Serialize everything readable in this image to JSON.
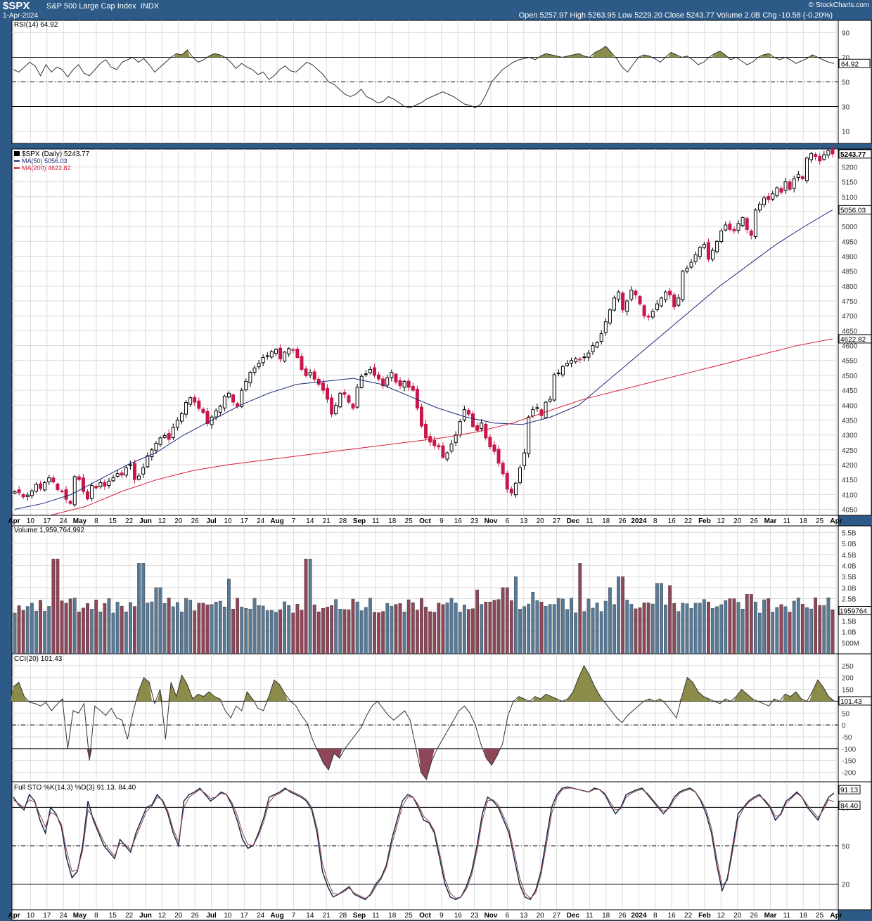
{
  "header": {
    "symbol": "$SPX",
    "name": "S&P 500 Large Cap Index",
    "exchange": "INDX",
    "date": "1-Apr-2024",
    "credit": "© StockCharts.com",
    "ohlc": "Open 5257.97   High 5263.95   Low 5229.20   Close 5243.77   Volume 2.0B   Chg -10.58 (-0.20%)"
  },
  "colors": {
    "up": "#ffffff",
    "down": "#c8174a",
    "ma50": "#1b2a7a",
    "ma200": "#d61f3c",
    "vol_up": "#587a96",
    "vol_down": "#8e4658",
    "olive": "#8b8b4a",
    "maroon": "#8e4658",
    "stok": "#1e2a48",
    "stod": "#8e4658"
  },
  "x_axis": {
    "labels": [
      "Apr",
      "10",
      "17",
      "24",
      "May",
      "8",
      "15",
      "22",
      "Jun",
      "12",
      "20",
      "26",
      "Jul",
      "10",
      "17",
      "24",
      "Aug",
      "7",
      "14",
      "21",
      "28",
      "Sep",
      "11",
      "18",
      "25",
      "Oct",
      "9",
      "16",
      "23",
      "Nov",
      "6",
      "13",
      "20",
      "27",
      "Dec",
      "11",
      "18",
      "26",
      "2024",
      "8",
      "16",
      "22",
      "Feb",
      "12",
      "20",
      "26",
      "Mar",
      "11",
      "18",
      "25",
      "Apr"
    ],
    "bold": [
      "Apr",
      "May",
      "Jun",
      "Jul",
      "Aug",
      "Sep",
      "Oct",
      "Nov",
      "Dec",
      "2024",
      "Feb",
      "Mar"
    ]
  },
  "chart_data": [
    {
      "type": "line",
      "title": "RSI(14) 64.92",
      "last_label": "64.92",
      "ylim": [
        0,
        100
      ],
      "ticks": [
        "90",
        "70",
        "50",
        "30",
        "10"
      ],
      "levels": [
        70,
        50,
        30
      ],
      "values": [
        60,
        58,
        62,
        66,
        63,
        55,
        64,
        58,
        62,
        60,
        54,
        60,
        64,
        57,
        55,
        60,
        65,
        68,
        62,
        60,
        66,
        68,
        70,
        66,
        69,
        64,
        58,
        62,
        66,
        70,
        73,
        72,
        76,
        70,
        66,
        68,
        71,
        73,
        72,
        70,
        66,
        61,
        65,
        62,
        60,
        56,
        58,
        52,
        55,
        60,
        63,
        59,
        58,
        62,
        66,
        64,
        60,
        56,
        50,
        48,
        44,
        40,
        38,
        40,
        44,
        38,
        36,
        33,
        34,
        38,
        36,
        33,
        30,
        29,
        31,
        33,
        36,
        38,
        40,
        42,
        40,
        38,
        35,
        32,
        31,
        29,
        32,
        40,
        50,
        55,
        60,
        63,
        66,
        68,
        69,
        70,
        68,
        71,
        73,
        72,
        71,
        70,
        71,
        72,
        73,
        71,
        70,
        74,
        76,
        79,
        74,
        69,
        62,
        58,
        64,
        70,
        72,
        71,
        69,
        66,
        70,
        74,
        72,
        70,
        71,
        68,
        64,
        66,
        70,
        73,
        75,
        72,
        68,
        70,
        67,
        64,
        66,
        70,
        72,
        73,
        70,
        68,
        70,
        68,
        65,
        67,
        69,
        72,
        70,
        68,
        66,
        65
      ]
    },
    {
      "type": "candlestick",
      "title": "$SPX (Daily) 5243.77",
      "last_label": "5243.77",
      "ylim": [
        4030,
        5260
      ],
      "ticks": [
        "5200",
        "5150",
        "5100",
        "5050",
        "5000",
        "4950",
        "4900",
        "4850",
        "4800",
        "4750",
        "4700",
        "4650",
        "4600",
        "4550",
        "4500",
        "4450",
        "4400",
        "4350",
        "4300",
        "4250",
        "4200",
        "4150",
        "4100",
        "4050"
      ],
      "close_path": [
        4110,
        4106,
        4092,
        4098,
        4112,
        4134,
        4120,
        4140,
        4156,
        4142,
        4116,
        4112,
        4084,
        4070,
        4160,
        4150,
        4110,
        4085,
        4130,
        4122,
        4140,
        4128,
        4145,
        4156,
        4170,
        4165,
        4190,
        4200,
        4150,
        4162,
        4190,
        4230,
        4250,
        4272,
        4290,
        4298,
        4285,
        4325,
        4350,
        4371,
        4409,
        4425,
        4410,
        4389,
        4375,
        4338,
        4360,
        4381,
        4396,
        4430,
        4440,
        4410,
        4396,
        4450,
        4480,
        4510,
        4525,
        4540,
        4560,
        4566,
        4580,
        4587,
        4555,
        4578,
        4590,
        4587,
        4560,
        4520,
        4499,
        4510,
        4487,
        4470,
        4450,
        4420,
        4370,
        4399,
        4440,
        4436,
        4410,
        4390,
        4460,
        4497,
        4505,
        4520,
        4500,
        4488,
        4465,
        4492,
        4510,
        4478,
        4465,
        4480,
        4460,
        4450,
        4390,
        4330,
        4290,
        4276,
        4264,
        4260,
        4225,
        4240,
        4270,
        4300,
        4345,
        4385,
        4370,
        4328,
        4315,
        4340,
        4290,
        4260,
        4245,
        4205,
        4170,
        4118,
        4105,
        4138,
        4190,
        4240,
        4360,
        4385,
        4390,
        4365,
        4410,
        4420,
        4502,
        4508,
        4530,
        4540,
        4550,
        4556,
        4555,
        4560,
        4575,
        4600,
        4610,
        4640,
        4680,
        4720,
        4760,
        4780,
        4720,
        4750,
        4786,
        4770,
        4740,
        4700,
        4696,
        4715,
        4740,
        4760,
        4780,
        4770,
        4730,
        4760,
        4850,
        4860,
        4880,
        4905,
        4930,
        4940,
        4890,
        4920,
        4950,
        4985,
        5005,
        4990,
        4985,
        5010,
        5030,
        4990,
        4970,
        5055,
        5075,
        5096,
        5090,
        5110,
        5130,
        5115,
        5150,
        5125,
        5160,
        5175,
        5160,
        5230,
        5245,
        5235,
        5220,
        5241,
        5255,
        5243.77
      ],
      "series": [
        {
          "name": "MA(50) 5056.03",
          "last_label": "5056.03",
          "path": [
            4050,
            4070,
            4100,
            4150,
            4200,
            4240,
            4300,
            4350,
            4400,
            4440,
            4470,
            4480,
            4490,
            4470,
            4430,
            4390,
            4360,
            4340,
            4335,
            4360,
            4400,
            4480,
            4560,
            4640,
            4720,
            4800,
            4870,
            4940,
            5000,
            5056.03
          ]
        },
        {
          "name": "MA(200) 4622.82",
          "last_label": "4622.82",
          "path": [
            3980,
            4010,
            4060,
            4110,
            4150,
            4180,
            4200,
            4215,
            4230,
            4245,
            4260,
            4275,
            4290,
            4310,
            4340,
            4380,
            4420,
            4450,
            4480,
            4510,
            4540,
            4570,
            4600,
            4622.82
          ]
        }
      ]
    },
    {
      "type": "bar",
      "title": "Volume 1,959,764,992",
      "last_label": "1959764",
      "ylim": [
        0,
        5.8
      ],
      "unit": "B",
      "ticks": [
        "5.5B",
        "5.0B",
        "4.5B",
        "4.0B",
        "3.5B",
        "3.0B",
        "2.5B",
        "2.0B",
        "1.5B",
        "1.0B",
        "500M"
      ],
      "spikes": {
        "1.5": 4.3,
        "4.6": 4.1,
        "5.2": 3.0,
        "6.8": 2.3,
        "7.8": 3.4,
        "10.7": 4.3,
        "15.5": 2.3,
        "16.9": 2.9,
        "17.9": 3.0,
        "18.3": 3.5,
        "18.9": 2.8,
        "20.6": 4.1,
        "21.7": 3.0,
        "22.1": 3.5,
        "23.5": 3.2,
        "23.9": 3.1,
        "24.9": 2.3,
        "26.2": 2.5,
        "26.8": 2.7
      }
    },
    {
      "type": "area",
      "title": "CCI(20) 101.43",
      "last_label": "101.43",
      "ylim": [
        -240,
        300
      ],
      "ticks": [
        "250",
        "200",
        "150",
        "100",
        "50",
        "0",
        "-50",
        "-100",
        "-150",
        "-200"
      ],
      "levels": [
        100,
        0,
        -100
      ],
      "values": [
        160,
        180,
        120,
        95,
        90,
        80,
        95,
        60,
        85,
        110,
        -100,
        60,
        50,
        90,
        -150,
        80,
        60,
        40,
        70,
        30,
        20,
        -60,
        50,
        140,
        200,
        180,
        90,
        150,
        -60,
        180,
        120,
        210,
        170,
        110,
        130,
        120,
        140,
        120,
        110,
        60,
        30,
        80,
        60,
        140,
        110,
        70,
        60,
        120,
        190,
        170,
        130,
        100,
        80,
        40,
        10,
        -60,
        -110,
        -160,
        -190,
        -120,
        -140,
        -100,
        -70,
        -40,
        -10,
        40,
        80,
        100,
        70,
        40,
        20,
        40,
        60,
        20,
        -90,
        -200,
        -230,
        -150,
        -100,
        -60,
        -20,
        20,
        60,
        80,
        50,
        0,
        -80,
        -140,
        -170,
        -130,
        -80,
        40,
        100,
        120,
        110,
        100,
        120,
        110,
        130,
        120,
        110,
        100,
        110,
        140,
        200,
        250,
        210,
        160,
        120,
        90,
        60,
        30,
        10,
        40,
        60,
        80,
        100,
        110,
        100,
        110,
        90,
        60,
        30,
        120,
        200,
        180,
        140,
        120,
        110,
        100,
        90,
        110,
        100,
        120,
        150,
        130,
        110,
        100,
        90,
        80,
        110,
        100,
        130,
        120,
        140,
        110,
        100,
        140,
        190,
        160,
        120,
        101.43
      ]
    },
    {
      "type": "line",
      "title": "Full STO %K(14,3) %D(3) 91.13, 84.40",
      "last_labels": [
        "91.13",
        "84.40"
      ],
      "ylim": [
        0,
        100
      ],
      "ticks": [
        "80",
        "50",
        "20"
      ],
      "levels": [
        80,
        50,
        20
      ],
      "series": [
        {
          "name": "%K",
          "values": [
            88,
            82,
            78,
            90,
            85,
            70,
            60,
            80,
            75,
            65,
            40,
            25,
            30,
            50,
            85,
            70,
            60,
            50,
            45,
            40,
            55,
            50,
            45,
            60,
            70,
            80,
            82,
            90,
            85,
            75,
            60,
            50,
            85,
            90,
            92,
            95,
            90,
            85,
            88,
            92,
            90,
            82,
            70,
            55,
            48,
            50,
            60,
            72,
            88,
            90,
            92,
            95,
            92,
            90,
            88,
            85,
            78,
            60,
            30,
            18,
            10,
            12,
            15,
            18,
            12,
            10,
            8,
            12,
            20,
            25,
            35,
            55,
            70,
            85,
            90,
            88,
            80,
            70,
            68,
            60,
            40,
            20,
            10,
            8,
            10,
            18,
            30,
            50,
            75,
            88,
            85,
            80,
            70,
            60,
            40,
            20,
            10,
            8,
            15,
            30,
            55,
            80,
            90,
            95,
            96,
            95,
            94,
            93,
            92,
            95,
            94,
            90,
            82,
            75,
            80,
            90,
            92,
            94,
            95,
            90,
            85,
            80,
            75,
            80,
            88,
            92,
            94,
            95,
            92,
            85,
            75,
            60,
            35,
            15,
            25,
            50,
            75,
            80,
            85,
            88,
            90,
            85,
            80,
            70,
            75,
            85,
            88,
            92,
            88,
            80,
            75,
            70,
            80,
            88,
            91.13
          ]
        },
        {
          "name": "%D",
          "values": [
            86,
            83,
            80,
            86,
            84,
            74,
            65,
            76,
            74,
            67,
            46,
            30,
            31,
            46,
            78,
            72,
            62,
            53,
            47,
            42,
            52,
            51,
            47,
            57,
            67,
            77,
            81,
            88,
            86,
            77,
            63,
            53,
            80,
            88,
            91,
            94,
            91,
            87,
            88,
            91,
            90,
            84,
            74,
            60,
            51,
            50,
            58,
            69,
            84,
            89,
            91,
            94,
            93,
            91,
            89,
            86,
            80,
            64,
            36,
            22,
            13,
            12,
            14,
            17,
            13,
            11,
            9,
            11,
            18,
            24,
            33,
            51,
            66,
            81,
            88,
            88,
            82,
            73,
            69,
            62,
            44,
            24,
            13,
            9,
            10,
            16,
            27,
            46,
            70,
            85,
            86,
            82,
            73,
            63,
            45,
            25,
            13,
            9,
            13,
            27,
            50,
            75,
            88,
            94,
            95,
            95,
            94,
            93,
            92,
            94,
            94,
            91,
            84,
            78,
            79,
            88,
            91,
            93,
            94,
            91,
            86,
            81,
            77,
            79,
            86,
            91,
            93,
            94,
            92,
            86,
            78,
            64,
            40,
            19,
            23,
            46,
            71,
            79,
            84,
            87,
            89,
            86,
            81,
            73,
            74,
            83,
            87,
            91,
            88,
            82,
            77,
            72,
            78,
            86,
            84.4
          ]
        }
      ]
    }
  ]
}
